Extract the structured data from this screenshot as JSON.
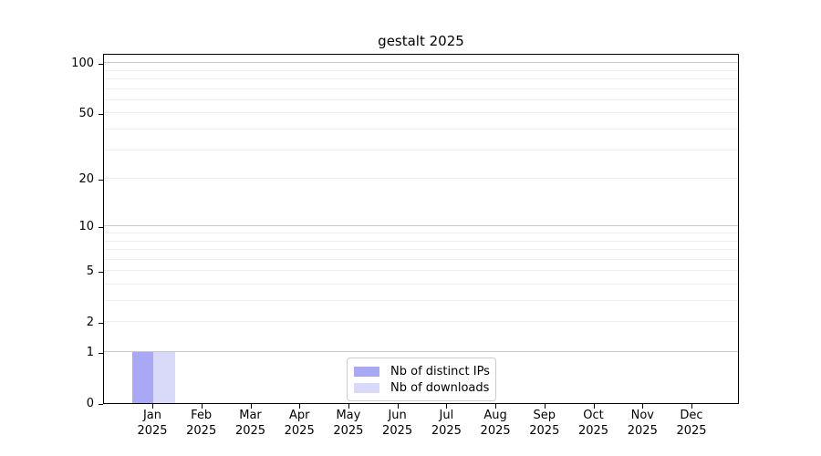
{
  "chart_data": {
    "type": "bar",
    "title": "gestalt 2025",
    "categories": [
      "Jan",
      "Feb",
      "Mar",
      "Apr",
      "May",
      "Jun",
      "Jul",
      "Aug",
      "Sep",
      "Oct",
      "Nov",
      "Dec"
    ],
    "category_year": "2025",
    "series": [
      {
        "name": "Nb of distinct IPs",
        "color": "#a8a8f4",
        "values": [
          1,
          0,
          0,
          0,
          0,
          0,
          0,
          0,
          0,
          0,
          0,
          0
        ]
      },
      {
        "name": "Nb of downloads",
        "color": "#d9d9fa",
        "values": [
          1,
          0,
          0,
          0,
          0,
          0,
          0,
          0,
          0,
          0,
          0,
          0
        ]
      }
    ],
    "y_axis": {
      "scale": "log1p",
      "labeled_ticks": [
        0,
        1,
        2,
        5,
        10,
        20,
        50,
        100
      ],
      "major_gridlines": [
        1,
        10,
        100
      ],
      "minor_gridlines": [
        2,
        3,
        4,
        5,
        6,
        7,
        8,
        9,
        20,
        30,
        40,
        50,
        60,
        70,
        80,
        90
      ],
      "ylim": [
        0,
        115
      ]
    },
    "legend": {
      "position": "lower center",
      "entries": [
        "Nb of distinct IPs",
        "Nb of downloads"
      ]
    },
    "grid": true,
    "xlabel": "",
    "ylabel": ""
  },
  "colors": {
    "major_grid": "#c9c9c9",
    "minor_grid": "#ededed",
    "axis": "#000000",
    "legend_border": "#cccccc"
  }
}
